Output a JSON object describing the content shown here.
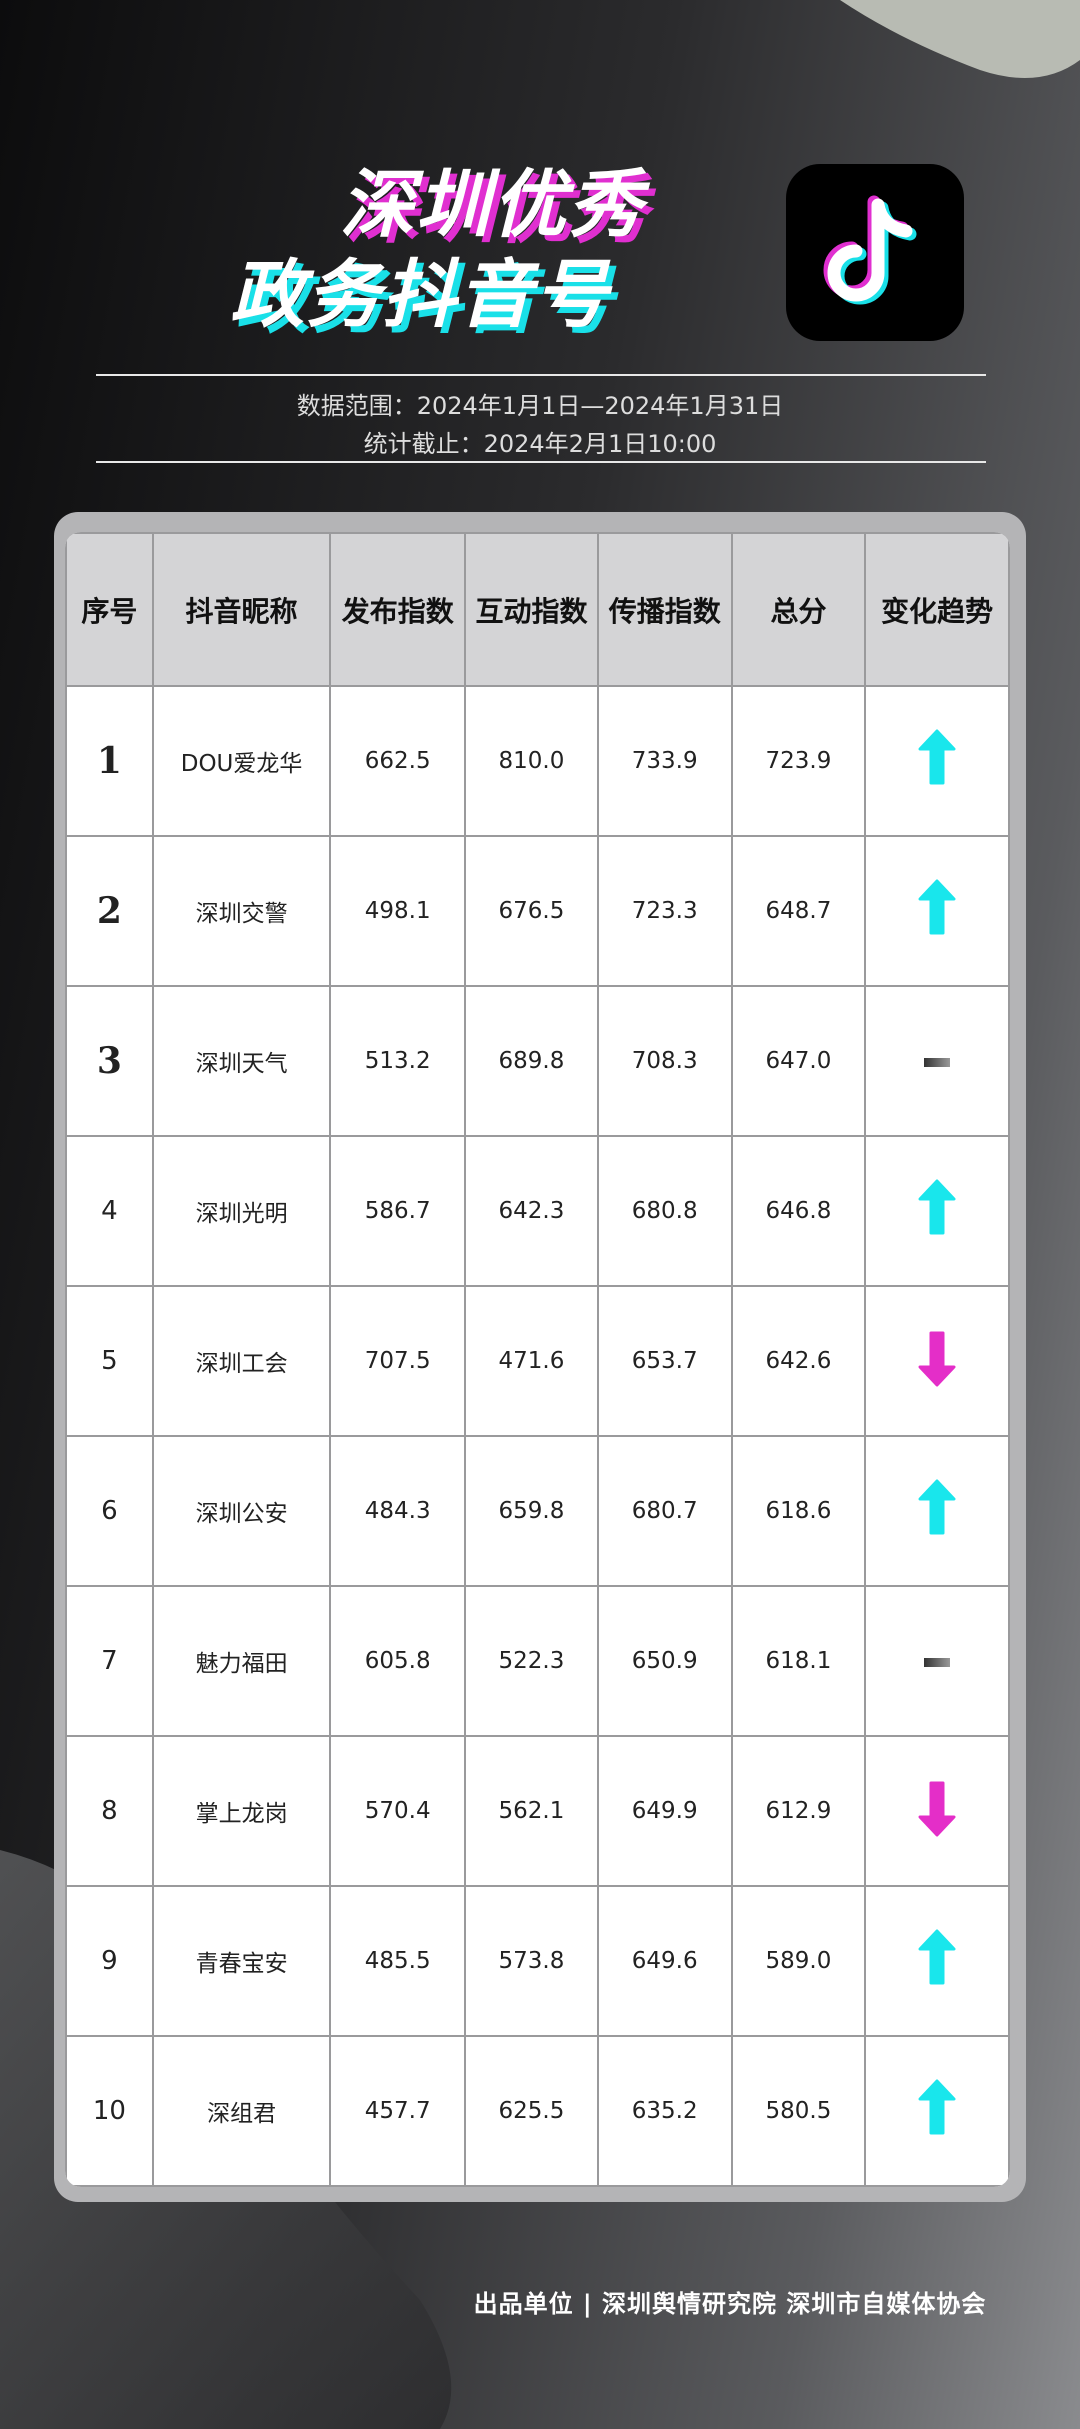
{
  "header": {
    "title_line1": "深圳优秀",
    "title_line2": "政务抖音号",
    "logo": "douyin-logo",
    "data_range": "数据范围：2024年1月1日—2024年1月31日",
    "cutoff": "统计截止：2024年2月1日10:00"
  },
  "colors": {
    "up": "#19e6ec",
    "down": "#e42ec8",
    "flat": "#555555",
    "accent_pink": "#e02fd0",
    "accent_cyan": "#19e0e8"
  },
  "table": {
    "columns": [
      "序号",
      "抖音昵称",
      "发布指数",
      "互动指数",
      "传播指数",
      "总分",
      "变化趋势"
    ],
    "rows": [
      {
        "rank": "1",
        "name": "DOU爱龙华",
        "publish": "662.5",
        "interact": "810.0",
        "spread": "733.9",
        "total": "723.9",
        "trend": "up"
      },
      {
        "rank": "2",
        "name": "深圳交警",
        "publish": "498.1",
        "interact": "676.5",
        "spread": "723.3",
        "total": "648.7",
        "trend": "up"
      },
      {
        "rank": "3",
        "name": "深圳天气",
        "publish": "513.2",
        "interact": "689.8",
        "spread": "708.3",
        "total": "647.0",
        "trend": "flat"
      },
      {
        "rank": "4",
        "name": "深圳光明",
        "publish": "586.7",
        "interact": "642.3",
        "spread": "680.8",
        "total": "646.8",
        "trend": "up"
      },
      {
        "rank": "5",
        "name": "深圳工会",
        "publish": "707.5",
        "interact": "471.6",
        "spread": "653.7",
        "total": "642.6",
        "trend": "down"
      },
      {
        "rank": "6",
        "name": "深圳公安",
        "publish": "484.3",
        "interact": "659.8",
        "spread": "680.7",
        "total": "618.6",
        "trend": "up"
      },
      {
        "rank": "7",
        "name": "魅力福田",
        "publish": "605.8",
        "interact": "522.3",
        "spread": "650.9",
        "total": "618.1",
        "trend": "flat"
      },
      {
        "rank": "8",
        "name": "掌上龙岗",
        "publish": "570.4",
        "interact": "562.1",
        "spread": "649.9",
        "total": "612.9",
        "trend": "down"
      },
      {
        "rank": "9",
        "name": "青春宝安",
        "publish": "485.5",
        "interact": "573.8",
        "spread": "649.6",
        "total": "589.0",
        "trend": "up"
      },
      {
        "rank": "10",
        "name": "深组君",
        "publish": "457.7",
        "interact": "625.5",
        "spread": "635.2",
        "total": "580.5",
        "trend": "up"
      }
    ]
  },
  "footer": {
    "text": "出品单位 | 深圳舆情研究院 深圳市自媒体协会"
  }
}
